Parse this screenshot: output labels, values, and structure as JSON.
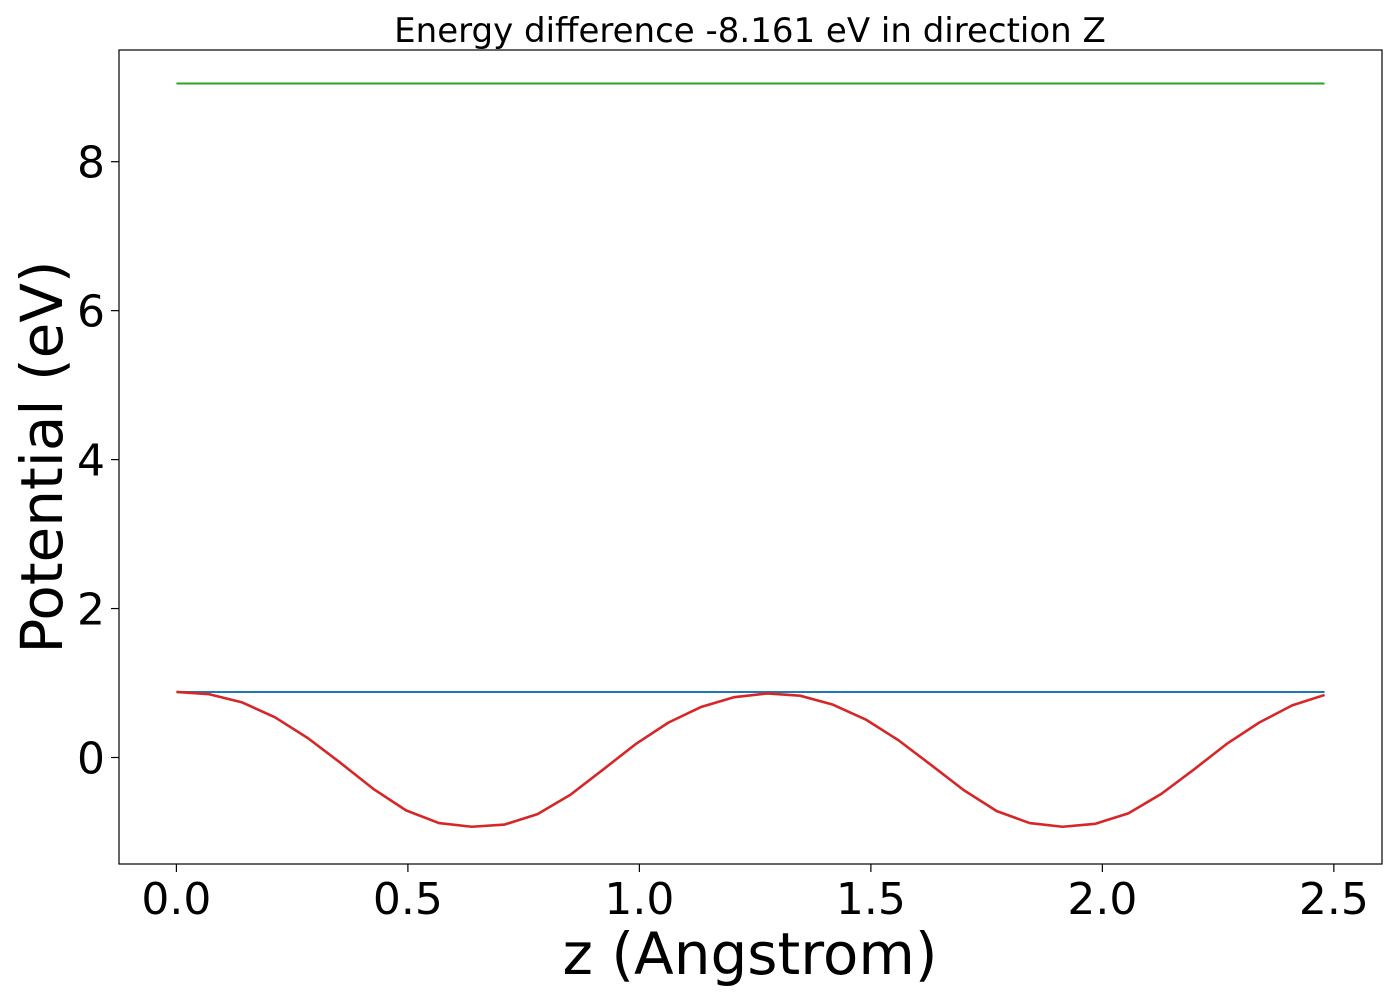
{
  "chart_data": {
    "type": "line",
    "title": "Energy difference -8.161 eV in direction Z",
    "xlabel": "z (Angstrom)",
    "ylabel": "Potential (eV)",
    "xlim": [
      -0.124,
      2.604
    ],
    "ylim": [
      -1.43,
      9.5
    ],
    "xticks": [
      0.0,
      0.5,
      1.0,
      1.5,
      2.0,
      2.5
    ],
    "xtick_labels": [
      "0.0",
      "0.5",
      "1.0",
      "1.5",
      "2.0",
      "2.5"
    ],
    "yticks": [
      0,
      2,
      4,
      6,
      8
    ],
    "ytick_labels": [
      "0",
      "2",
      "4",
      "6",
      "8"
    ],
    "grid": false,
    "legend": "none",
    "series": [
      {
        "color": "#2ca02c",
        "x": [
          0.0,
          2.48
        ],
        "y": [
          9.05,
          9.05
        ]
      },
      {
        "color": "#1f77b4",
        "x": [
          0.0,
          2.48
        ],
        "y": [
          0.88,
          0.88
        ]
      },
      {
        "color": "#d62728",
        "x": [
          0.0,
          0.071,
          0.142,
          0.213,
          0.284,
          0.354,
          0.425,
          0.496,
          0.567,
          0.638,
          0.709,
          0.78,
          0.851,
          0.922,
          0.992,
          1.063,
          1.134,
          1.205,
          1.276,
          1.347,
          1.418,
          1.489,
          1.56,
          1.63,
          1.701,
          1.772,
          1.843,
          1.914,
          1.985,
          2.056,
          2.127,
          2.198,
          2.268,
          2.339,
          2.41,
          2.48
        ],
        "y": [
          0.88,
          0.85,
          0.74,
          0.54,
          0.26,
          -0.07,
          -0.42,
          -0.71,
          -0.88,
          -0.93,
          -0.9,
          -0.76,
          -0.5,
          -0.16,
          0.18,
          0.47,
          0.68,
          0.81,
          0.86,
          0.83,
          0.71,
          0.51,
          0.23,
          -0.1,
          -0.44,
          -0.72,
          -0.88,
          -0.93,
          -0.89,
          -0.75,
          -0.49,
          -0.16,
          0.18,
          0.47,
          0.7,
          0.84
        ]
      }
    ]
  }
}
